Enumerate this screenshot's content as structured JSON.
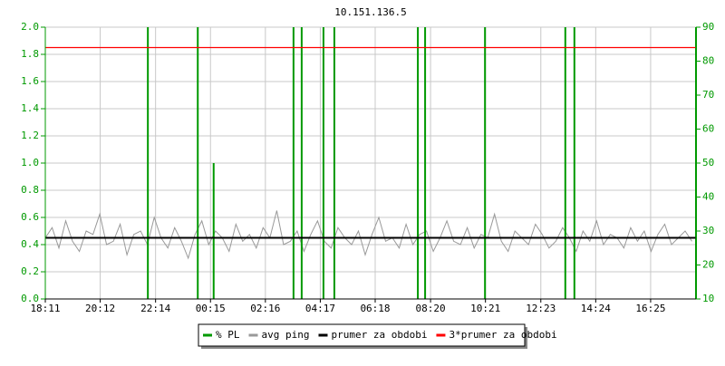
{
  "chart_data": {
    "type": "line",
    "title": "10.151.136.5",
    "xlim": [
      0,
      1434
    ],
    "xticks": [
      {
        "value": 0,
        "label": "18:11"
      },
      {
        "value": 121,
        "label": "20:12"
      },
      {
        "value": 243,
        "label": "22:14"
      },
      {
        "value": 364,
        "label": "00:15"
      },
      {
        "value": 485,
        "label": "02:16"
      },
      {
        "value": 606,
        "label": "04:17"
      },
      {
        "value": 727,
        "label": "06:18"
      },
      {
        "value": 849,
        "label": "08:20"
      },
      {
        "value": 970,
        "label": "10:21"
      },
      {
        "value": 1092,
        "label": "12:23"
      },
      {
        "value": 1213,
        "label": "14:24"
      },
      {
        "value": 1334,
        "label": "16:25"
      }
    ],
    "ylim": [
      0,
      2
    ],
    "yticks": [
      {
        "value": 0,
        "label": "0.0"
      },
      0.2,
      0.4,
      0.6,
      0.8,
      {
        "value": 1,
        "label": "1.0"
      },
      1.2,
      1.4,
      1.6,
      1.8,
      {
        "value": 2,
        "label": "2.0"
      }
    ],
    "y2lim": [
      10,
      90
    ],
    "y2ticks": [
      10,
      20,
      30,
      40,
      50,
      60,
      70,
      80,
      90
    ],
    "grid": true,
    "legend": "bottom",
    "series": [
      {
        "name": "% PL",
        "color": "#009900",
        "style": "spikes",
        "x": [
          226,
          336,
          371,
          547,
          565,
          613,
          637,
          821,
          837,
          969,
          1146,
          1166,
          1434
        ],
        "values": [
          2,
          2,
          1,
          2,
          2,
          2,
          2,
          2,
          2,
          2,
          2,
          2,
          2
        ]
      },
      {
        "name": "avg ping",
        "color": "#999999",
        "axis": "y2",
        "x": [
          0,
          15,
          30,
          45,
          60,
          75,
          90,
          105,
          120,
          135,
          150,
          165,
          180,
          195,
          210,
          225,
          240,
          255,
          270,
          285,
          300,
          315,
          330,
          345,
          360,
          375,
          390,
          405,
          420,
          435,
          450,
          465,
          480,
          495,
          510,
          525,
          540,
          555,
          570,
          585,
          600,
          615,
          630,
          645,
          660,
          675,
          690,
          705,
          720,
          735,
          750,
          765,
          780,
          795,
          810,
          825,
          840,
          855,
          870,
          885,
          900,
          915,
          930,
          945,
          960,
          975,
          990,
          1005,
          1020,
          1035,
          1050,
          1065,
          1080,
          1095,
          1110,
          1125,
          1140,
          1155,
          1170,
          1185,
          1200,
          1215,
          1230,
          1245,
          1260,
          1275,
          1290,
          1305,
          1320,
          1335,
          1350,
          1365,
          1380,
          1395,
          1410,
          1425
        ],
        "values": [
          28,
          31,
          25,
          33,
          27,
          24,
          30,
          29,
          35,
          26,
          27,
          32,
          23,
          29,
          30,
          26,
          34,
          28,
          25,
          31,
          27,
          22,
          29,
          33,
          26,
          30,
          28,
          24,
          32,
          27,
          29,
          25,
          31,
          28,
          36,
          26,
          27,
          30,
          24,
          29,
          33,
          27,
          25,
          31,
          28,
          26,
          30,
          23,
          29,
          34,
          27,
          28,
          25,
          32,
          26,
          29,
          30,
          24,
          28,
          33,
          27,
          26,
          31,
          25,
          29,
          28,
          35,
          27,
          24,
          30,
          28,
          26,
          32,
          29,
          25,
          27,
          31,
          28,
          24,
          30,
          27,
          33,
          26,
          29,
          28,
          25,
          31,
          27,
          30,
          24,
          29,
          32,
          26,
          28,
          30,
          27
        ]
      },
      {
        "name": "prumer za obdobi",
        "color": "#000000",
        "axis": "y2",
        "style": "hline",
        "value": 28
      },
      {
        "name": "3*prumer za obdobi",
        "color": "#ff0000",
        "axis": "y2",
        "style": "hline",
        "value": 84
      }
    ]
  }
}
